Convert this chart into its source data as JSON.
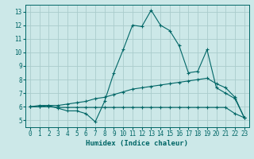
{
  "title": "",
  "xlabel": "Humidex (Indice chaleur)",
  "bg_color": "#cce8e8",
  "grid_color": "#aacccc",
  "line_color": "#006666",
  "xlim": [
    -0.5,
    23.5
  ],
  "ylim": [
    4.5,
    13.5
  ],
  "xticks": [
    0,
    1,
    2,
    3,
    4,
    5,
    6,
    7,
    8,
    9,
    10,
    11,
    12,
    13,
    14,
    15,
    16,
    17,
    18,
    19,
    20,
    21,
    22,
    23
  ],
  "yticks": [
    5,
    6,
    7,
    8,
    9,
    10,
    11,
    12,
    13
  ],
  "series1_x": [
    0,
    1,
    2,
    3,
    4,
    5,
    6,
    7,
    8,
    9,
    10,
    11,
    12,
    13,
    14,
    15,
    16,
    17,
    18,
    19,
    20,
    21,
    22,
    23
  ],
  "series1_y": [
    6.0,
    6.1,
    6.1,
    5.9,
    5.7,
    5.7,
    5.5,
    4.9,
    6.4,
    8.5,
    10.2,
    12.0,
    11.9,
    13.1,
    12.0,
    11.6,
    10.5,
    8.5,
    8.6,
    10.2,
    7.4,
    7.0,
    6.6,
    5.2
  ],
  "series2_x": [
    0,
    1,
    2,
    3,
    4,
    5,
    6,
    7,
    8,
    9,
    10,
    11,
    12,
    13,
    14,
    15,
    16,
    17,
    18,
    19,
    20,
    21,
    22,
    23
  ],
  "series2_y": [
    6.0,
    6.0,
    6.1,
    6.1,
    6.2,
    6.3,
    6.4,
    6.6,
    6.7,
    6.9,
    7.1,
    7.3,
    7.4,
    7.5,
    7.6,
    7.7,
    7.8,
    7.9,
    8.0,
    8.1,
    7.7,
    7.4,
    6.7,
    5.2
  ],
  "series3_x": [
    0,
    1,
    2,
    3,
    4,
    5,
    6,
    7,
    8,
    9,
    10,
    11,
    12,
    13,
    14,
    15,
    16,
    17,
    18,
    19,
    20,
    21,
    22,
    23
  ],
  "series3_y": [
    6.0,
    6.0,
    6.0,
    5.95,
    5.95,
    5.95,
    5.95,
    5.95,
    5.95,
    5.95,
    5.95,
    5.95,
    5.95,
    5.95,
    5.95,
    5.95,
    5.95,
    5.95,
    5.95,
    5.95,
    5.95,
    5.95,
    5.5,
    5.2
  ]
}
